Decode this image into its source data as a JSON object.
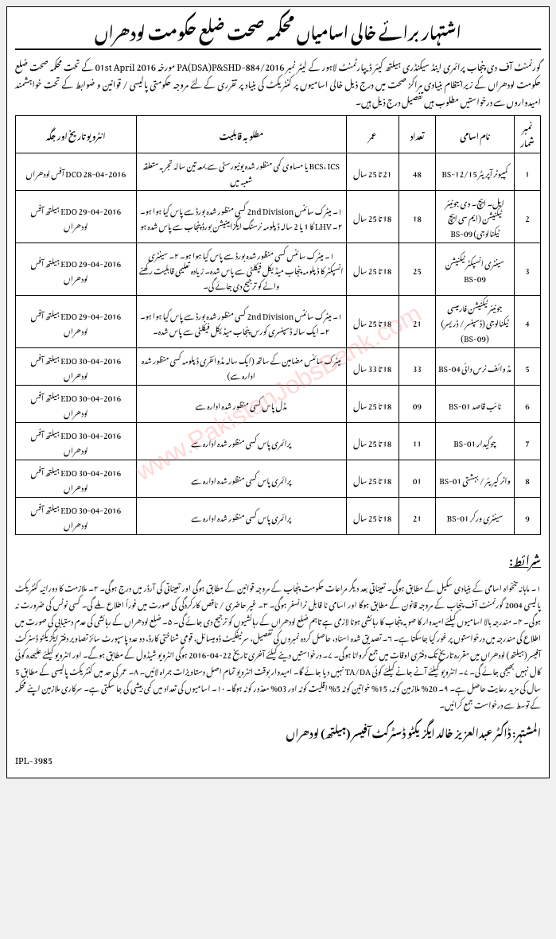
{
  "title": "اشتہار برائے خالی اسامیاں محکمہ صحت ضلع حکومت لودھراں",
  "intro": "گورنمنٹ آف دی پنجاب پرائمری اینڈ سیکنڈری ہیلتھ کیئر ڈیپارٹمنٹ لاہور کے لیٹر نمبر PA(DSA)P&SHD-884/2016 مورخہ 01st April 2016 کے تحت محکمہ صحت ضلع حکومت لودھراں کے زیرانتظام بنیادی مراکز صحت میں درج ذیل خالی اسامیوں پر کنٹریکٹ کی بنیاد پر تقرری کے لئے مروجہ حکومتی پالیسی / قوانین و ضوابط کے تحت خواہشمند امیدواروں سے درخواستیں مطلوب ہیں تفصیل درج ذیل ہیں۔",
  "headers": {
    "sr": "نمبر شمار",
    "post": "نام اسامی",
    "count": "تعداد",
    "age": "عمر",
    "qual": "مطلوبہ قابلیت",
    "date": "انٹرویو تاریخ اور جگہ"
  },
  "rows": [
    {
      "sr": "1",
      "post": "کمپیوٹر آپریٹر BS-12/15",
      "count": "48",
      "age": "21 تا 25 سال",
      "qual": "BCS، ICS یا مساوی کمی منظور شدہ یونیورسٹی سے بمعہ تین سالہ تجربہ متعلقہ شعبہ میں",
      "date": "28-04-2016 DCO آفس لودھراں"
    },
    {
      "sr": "2",
      "post": "ایل۔ ایچ۔ وی جونیئر ٹیکنیشن (ایم سی ایچ ٹیکنالوجی) BS-09",
      "count": "18",
      "age": "18 تا 25 سال",
      "qual": "۱۔ میٹرک سائنس 2nd Division کسی منظور شدہ بورڈ سے پاس کیا ہوا ہو۔ ۲۔ LHV کا 1 یا 2 سالہ ڈپلومہ نرسنگ ایگزامینیشن بورڈ پنجاب سے پاس شدہ ہو",
      "date": "29-04-2016 EDO ہیلتھ آفس لودھراں"
    },
    {
      "sr": "3",
      "post": "سینٹری انسپکٹر ٹیکنیشن BS-09",
      "count": "25",
      "age": "18 تا 25 سال",
      "qual": "۱۔ میٹرک سائنس کسی منظور شدہ بورڈ سے پاس کیا ہوا ہو۔ ۲۔ سینٹری انسپکٹر کا ڈپلومہ پنجاب میڈیکل فیکلٹی سے پاس شدہ۔ زیادہ تعلیمی قابلیت رکھنے والے کو ترجیح دی جائے گی۔",
      "date": "29-04-2016 EDO ہیلتھ آفس لودھراں"
    },
    {
      "sr": "4",
      "post": "جونیئر ٹیکنیشن فارمیسی ٹیکنالوجی (ڈسپنسر / ڈریسر) (BS-09)",
      "count": "21",
      "age": "18 تا 25 سال",
      "qual": "۱۔ میٹرک سائنس 2nd Division کسی منظور شدہ بورڈ سے پاس کیا ہوا ہو۔ ۲۔ ایک سالہ ڈسپنسری کورس پنجاب میڈیکل فیکلٹی سے پاس شدہ۔",
      "date": "29-04-2016 EDO ہیلتھ آفس لودھراں"
    },
    {
      "sr": "5",
      "post": "مڈ وائف نرس دائی BS-04",
      "count": "33",
      "age": "18 تا 33 سال",
      "qual": "میٹرک سائنس مضامین کے ساتھ (ایک سالہ مڈوائفری ڈپلومہ کسی منظور شدہ ادارہ سے)",
      "date": "30-04-2016 EDO ہیلتھ آفس لودھراں"
    },
    {
      "sr": "6",
      "post": "نائب قاصد BS-01",
      "count": "09",
      "age": "18 تا 25 سال",
      "qual": "مڈل پاس کسی منظور شدہ ادارہ سے",
      "date": "30-04-2016 EDO ہیلتھ آفس لودھراں"
    },
    {
      "sr": "7",
      "post": "چوکیدار BS-01",
      "count": "11",
      "age": "18 تا 25 سال",
      "qual": "پرائمری پاس کسی منظور شدہ ادارہ سے",
      "date": "30-04-2016 EDO ہیلتھ آفس لودھراں"
    },
    {
      "sr": "8",
      "post": "واٹر کیریئر / بہشتی BS-01",
      "count": "01",
      "age": "18 تا 25 سال",
      "qual": "پرائمری پاس کسی منظور شدہ ادارہ سے",
      "date": "30-04-2016 EDO ہیلتھ آفس لودھراں"
    },
    {
      "sr": "9",
      "post": "سینٹری ورکر BS-01",
      "count": "21",
      "age": "18 تا 25 سال",
      "qual": "پرائمری پاس کسی منظور شدہ ادارہ سے",
      "date": "30-04-2016 EDO ہیلتھ آفس لودھراں"
    }
  ],
  "conditions_title": "شرائط:",
  "conditions": "۱۔ ماہانہ تنخواہ اسامی کے بنیادی سکیل کے مطابق ہوگی۔ تعیناتی بعد دیگر مراعات حکومت پنجاب کے مروجہ قوانین کے مطابق ہوگی اور تعیناتی کی آرڈر میں درج ہوگی۔ ۲۔ ملازمت کا دورانیہ کنٹریکٹ پالیسی 2004 گورنمنٹ آف پنجاب کے مروجہ قانون کے مطابق ہوگا اور اسامی نا قابل ٹرانسفر ہوگی۔ ۳۔ غیر حاضری / ناقص کارکردگی کی صورت میں فوراً اطلاع ملے گی۔ کسی نوٹس کی ضرورت نہ ہوگی۔ ۴۔ مندرجہ بالا اسامیوں کیلئے امیدوار کا صوبہ پنجاب کا رہائشی ہونا لازمی ہے تاہم ضلع لودھراں کے رہائشیوں کو ترجیح دی جائے گی۔ ۵۔ ضلع لودھراں کے رہائشی کی عدم دستیابی کی صورت میں اطلاع کی مندرجہ میں درخواستوں پر غور کیا جاسکتا ہے۔ ۶۔ تصدیق شدہ اسناد، حاصل کردہ نمبروں کی تفصیل، سرٹیفکیٹ ڈومیسائل، قومی شناختی کارڈ، دو عدد پاسپورٹ سائز تصاویر دفتر ایگزیکٹو ڈسٹرکٹ آفیسر (ہیلتھ) لودھراں میں مقررہ تاریخ تک دفتری اوقات میں جمع کروانا ہوگی۔ ۷۔ درخواستیں دینے کیلئے آخری تاریخ 22-04-2016 ہوگی انٹرویو شیڈول کے مطابق ہوگے۔ اور انٹرویو کیلئے علیحدہ کوئی کال نہیں بھیجی جائے گی۔ ۷۔ انٹرویو کیلئے آنے جانے کیلئے کوئی TA/DA نہیں دیا جائے گا۔ امیدوار بوقت انٹرویو تمام اصل دستاویزات ہمراہ لائیں۔ ۸۔ عمر کی حد میں کنٹریکٹ پالیسی کے مطابق 5 سال کی مزید رعایت حاصل ہے۔ ۹۔ 20% ملازمین کوٹہ، 15% خواتین کوٹہ 5% اقلیت کوٹہ اور 03% معذور کوٹہ ہوگا۔ ۱۰۔ اسامیوں کی تعداد میں کمی بیشی کی جا سکتی ہے۔ سرکاری ملازمین اپنے محکمہ کے توسط سے درخواست جمع کرائیں۔",
  "signature": "المشتہر: ڈاکٹر عبدالعزیز خالد ایگزیکٹو ڈسٹرکٹ آفیسر (ہیلتھ) لودھراں",
  "ipl": "IPL-3985",
  "watermark": "www.PakistanJobsBank.com"
}
